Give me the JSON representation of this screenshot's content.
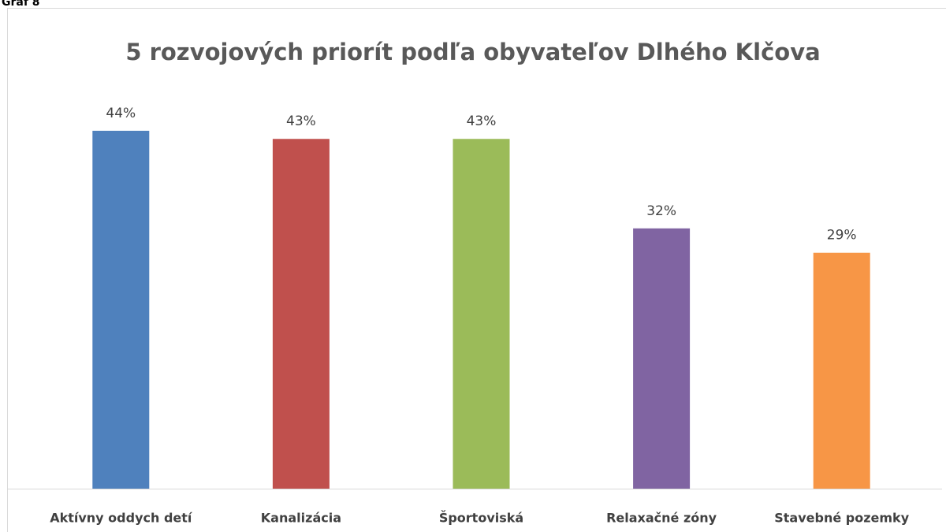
{
  "caption": "Graf 8",
  "chart_data": {
    "type": "bar",
    "title": "5 rozvojových priorít podľa obyvateľov Dlhého Klčova",
    "categories": [
      "Aktívny oddych detí",
      "Kanalizácia",
      "Športoviská",
      "Relaxačné zóny",
      "Stavebné pozemky"
    ],
    "values": [
      44,
      43,
      43,
      32,
      29
    ],
    "value_labels": [
      "44%",
      "43%",
      "43%",
      "32%",
      "29%"
    ],
    "colors": [
      "#4f81bd",
      "#c0504d",
      "#9bbb59",
      "#8064a2",
      "#f79646"
    ],
    "ylim": [
      0,
      50
    ]
  }
}
